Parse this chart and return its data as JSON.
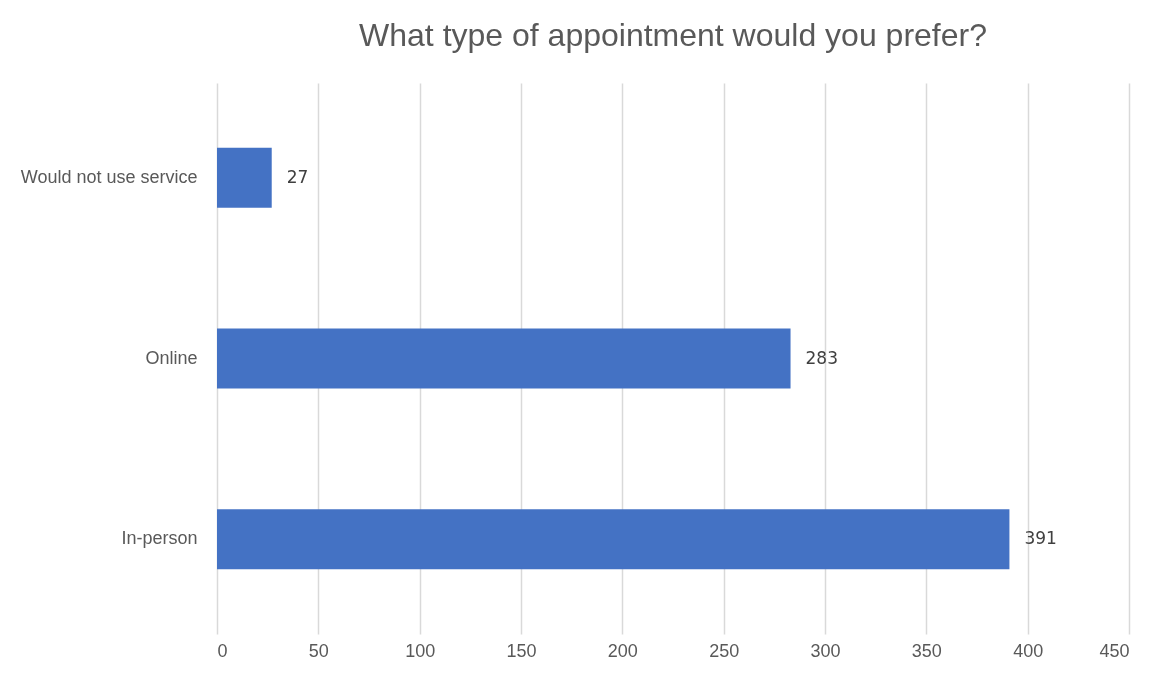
{
  "chart_data": {
    "type": "bar",
    "orientation": "horizontal",
    "title": "What type of appointment would you prefer?",
    "categories": [
      "Would not use service",
      "Online",
      "In-person"
    ],
    "values": [
      27,
      283,
      391
    ],
    "color": "#4472c4",
    "xlim": [
      0,
      450
    ],
    "xticks": [
      0,
      50,
      100,
      150,
      200,
      250,
      300,
      350,
      400,
      450
    ],
    "grid": "x",
    "data_labels": true
  }
}
